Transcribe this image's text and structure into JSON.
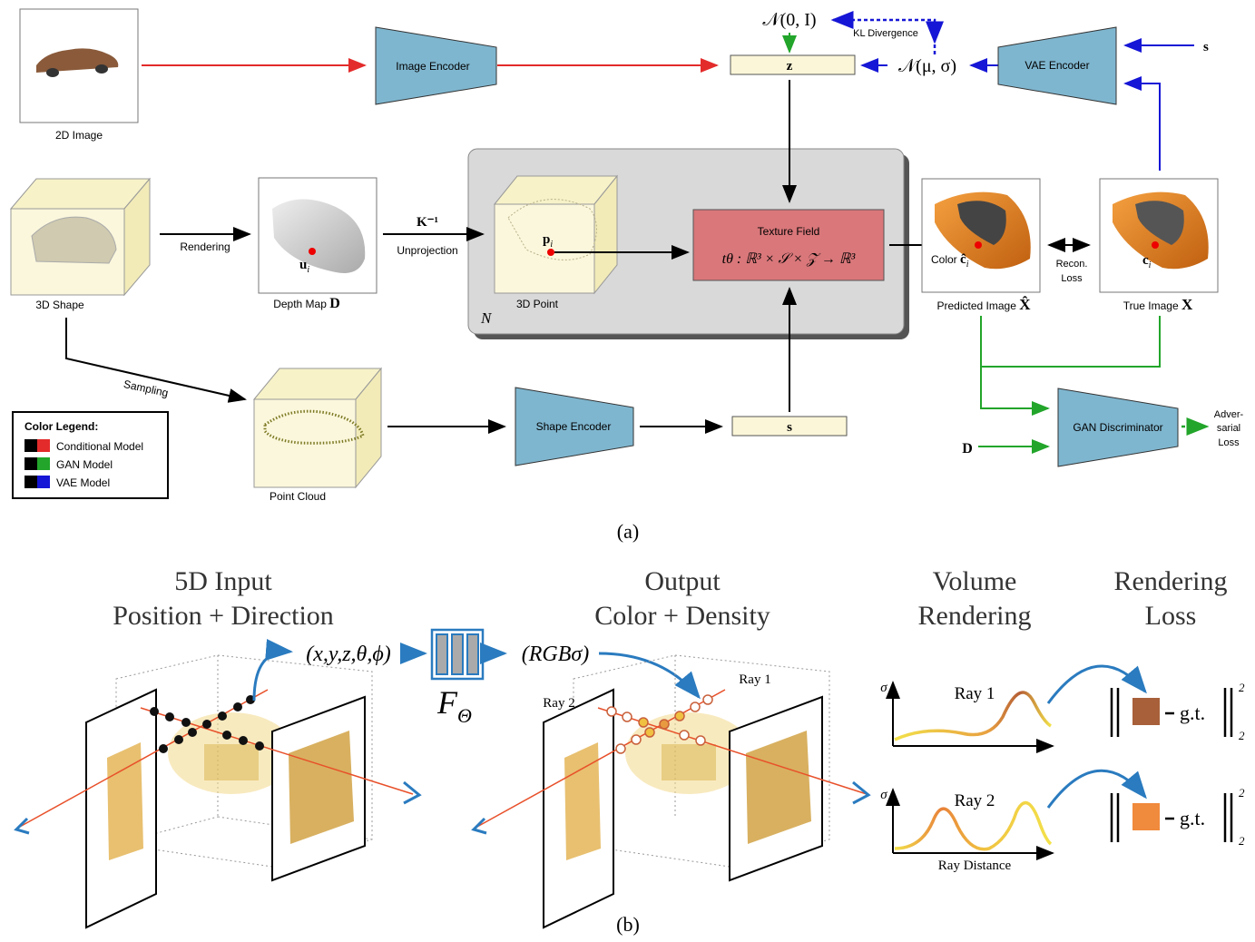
{
  "panel_a": {
    "caption": "(a)",
    "image_2d_label": "2D Image",
    "image_encoder_label": "Image Encoder",
    "z_label": "z",
    "prior_label": "𝒩(0, I)",
    "kl_label": "KL Divergence",
    "posterior_label": "𝒩(μ, σ)",
    "vae_encoder_label": "VAE Encoder",
    "s_input_label": "s",
    "shape_3d_label": "3D Shape",
    "rendering_label": "Rendering",
    "depth_map_label": "Depth Map",
    "depth_symbol": "D",
    "u_symbol": "u",
    "u_sub": "i",
    "k_inv_label": "K⁻¹",
    "unprojection_label": "Unprojection",
    "point_3d_label": "3D Point",
    "p_symbol": "p",
    "p_sub": "i",
    "n_label": "N",
    "texture_field_title": "Texture Field",
    "texture_field_formula": "tθ : ℝ³ × 𝒮 × 𝒵 → ℝ³",
    "color_label": "Color",
    "c_hat_symbol": "ĉ",
    "c_hat_sub": "i",
    "c_symbol": "c",
    "c_sub": "i",
    "recon_line1": "Recon.",
    "recon_line2": "Loss",
    "predicted_label": "Predicted Image",
    "x_hat_symbol": "X̂",
    "true_label": "True Image",
    "x_symbol": "X",
    "sampling_label": "Sampling",
    "point_cloud_label": "Point Cloud",
    "shape_encoder_label": "Shape Encoder",
    "s_label": "s",
    "gan_label": "GAN Discriminator",
    "d_input_label": "D",
    "adv_line1": "Adver-",
    "adv_line2": "sarial",
    "adv_line3": "Loss",
    "legend": {
      "title": "Color Legend:",
      "items": [
        {
          "label": "Conditional Model",
          "color": "#e32b2b"
        },
        {
          "label": "GAN Model",
          "color": "#22a52a"
        },
        {
          "label": "VAE Model",
          "color": "#1616d6"
        }
      ]
    }
  },
  "panel_b": {
    "caption": "(b)",
    "h1_line1": "5D Input",
    "h1_line2": "Position + Direction",
    "h2_line1": "Output",
    "h2_line2": "Color + Density",
    "h3_line1": "Volume",
    "h3_line2": "Rendering",
    "h4_line1": "Rendering",
    "h4_line2": "Loss",
    "input_tuple": "(x,y,z,θ,ϕ)",
    "output_tuple": "(RGBσ)",
    "f_symbol": "F",
    "f_sub": "Θ",
    "ray1_label": "Ray 1",
    "ray2_label": "Ray 2",
    "sigma_label": "σ",
    "ray_distance_label": "Ray Distance",
    "gt_label": "g.t.",
    "norm_sup": "2",
    "norm_sub": "2",
    "loss1_color": "#a8603a",
    "loss2_color": "#f08a3c"
  }
}
